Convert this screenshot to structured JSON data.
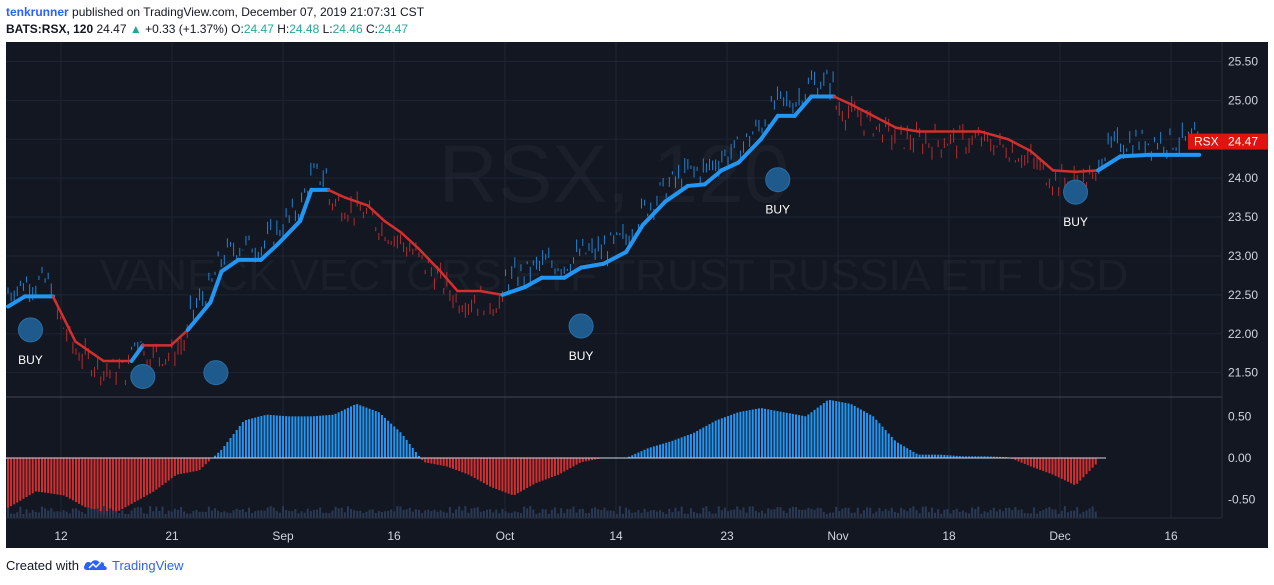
{
  "header": {
    "author": "tenkrunner",
    "published": " published on TradingView.com, December 07, 2019 21:07:31 CST",
    "symbol": "BATS:RSX, 120",
    "last": "24.47",
    "change_arrow": "▲",
    "change": "+0.33 (+1.37%)",
    "o_label": "O:",
    "o_val": "24.47",
    "h_label": "H:",
    "h_val": "24.48",
    "l_label": "L:",
    "l_val": "24.46",
    "c_label": "C:",
    "c_val": "24.47"
  },
  "footer": {
    "created": "Created with",
    "brand": "TradingView",
    "logo_icon": "tradingview-cloud-icon"
  },
  "colors": {
    "bg": "#131722",
    "up": "#2196f3",
    "down": "#d32f2f",
    "grid": "#1e2433",
    "axis_text": "#d1d4dc",
    "price_tag": "#e0140f"
  },
  "chart_data": [
    {
      "type": "line",
      "watermark": [
        "RSX, 120",
        "VANECK VECTORS ETF TRUST RUSSIA ETF USD"
      ],
      "y_ticks": [
        "25.50",
        "25.00",
        "24.50",
        "24.00",
        "23.50",
        "23.00",
        "22.50",
        "22.00",
        "21.50"
      ],
      "ylim": [
        21.2,
        25.75
      ],
      "x_ticks": [
        "12",
        "21",
        "Sep",
        "16",
        "Oct",
        "14",
        "23",
        "Nov",
        "18",
        "Dec",
        "16"
      ],
      "price_tag": {
        "label": "RSX",
        "value": "24.47"
      },
      "trend_line": {
        "x": [
          0,
          3,
          8,
          12,
          17,
          22,
          24,
          29,
          32,
          36,
          38,
          41,
          45,
          48,
          52,
          54,
          57,
          60,
          64,
          67,
          70,
          73,
          77,
          80,
          84,
          88,
          92,
          95,
          99,
          102,
          106,
          110,
          113,
          117,
          121,
          124,
          127,
          130,
          134,
          137,
          140,
          143,
          147,
          150,
          154,
          158,
          162,
          165,
          169,
          173,
          178,
          182,
          186,
          190,
          194,
          198,
          203,
          208,
          212
        ],
        "y": [
          22.35,
          22.48,
          22.48,
          21.9,
          21.65,
          21.65,
          21.85,
          21.85,
          22.05,
          22.4,
          22.8,
          22.95,
          22.95,
          23.15,
          23.45,
          23.85,
          23.85,
          23.75,
          23.65,
          23.45,
          23.3,
          23.1,
          22.8,
          22.55,
          22.55,
          22.5,
          22.6,
          22.72,
          22.72,
          22.85,
          22.9,
          23.05,
          23.4,
          23.7,
          23.9,
          23.92,
          24.1,
          24.2,
          24.5,
          24.8,
          24.8,
          25.05,
          25.05,
          24.95,
          24.8,
          24.65,
          24.6,
          24.6,
          24.6,
          24.6,
          24.5,
          24.35,
          24.1,
          24.08,
          24.1,
          24.28,
          24.3,
          24.3,
          24.3
        ],
        "trend": [
          "up",
          "up",
          "down",
          "down",
          "down",
          "up",
          "down",
          "down",
          "up",
          "up",
          "up",
          "up",
          "up",
          "up",
          "up",
          "up",
          "down",
          "down",
          "down",
          "down",
          "down",
          "down",
          "down",
          "down",
          "down",
          "up",
          "up",
          "up",
          "up",
          "up",
          "up",
          "up",
          "up",
          "up",
          "up",
          "up",
          "up",
          "up",
          "up",
          "up",
          "up",
          "up",
          "down",
          "down",
          "down",
          "down",
          "down",
          "down",
          "down",
          "down",
          "down",
          "down",
          "down",
          "down",
          "up",
          "up",
          "up",
          "up",
          "up"
        ]
      },
      "signals": [
        {
          "x": 4,
          "y": 22.05,
          "label": "BUY"
        },
        {
          "x": 24,
          "y": 21.45,
          "label": ""
        },
        {
          "x": 37,
          "y": 21.5,
          "label": ""
        },
        {
          "x": 102,
          "y": 22.1,
          "label": "BUY"
        },
        {
          "x": 137,
          "y": 23.98,
          "label": "BUY"
        },
        {
          "x": 190,
          "y": 23.82,
          "label": "BUY"
        }
      ],
      "x_range": [
        0,
        215
      ]
    },
    {
      "type": "bar",
      "name": "histogram",
      "y_ticks": [
        "0.50",
        "0.00",
        "-0.50"
      ],
      "ylim": [
        -0.72,
        0.72
      ],
      "values_x": [
        0,
        5,
        10,
        14,
        18,
        22,
        26,
        30,
        34,
        38,
        42,
        46,
        50,
        54,
        58,
        62,
        66,
        70,
        74,
        78,
        82,
        86,
        90,
        94,
        98,
        102,
        106,
        110,
        114,
        118,
        122,
        126,
        130,
        134,
        138,
        142,
        146,
        150,
        154,
        158,
        162,
        166,
        170,
        174,
        178,
        182,
        186,
        190,
        194
      ],
      "values": [
        -0.6,
        -0.4,
        -0.45,
        -0.6,
        -0.7,
        -0.55,
        -0.4,
        -0.2,
        -0.15,
        0.1,
        0.45,
        0.52,
        0.5,
        0.5,
        0.52,
        0.65,
        0.55,
        0.3,
        -0.05,
        -0.1,
        -0.2,
        -0.35,
        -0.45,
        -0.3,
        -0.2,
        -0.05,
        0.0,
        0.0,
        0.12,
        0.2,
        0.3,
        0.45,
        0.55,
        0.6,
        0.55,
        0.5,
        0.7,
        0.65,
        0.5,
        0.2,
        0.04,
        0.04,
        0.02,
        0.02,
        0.01,
        -0.1,
        -0.2,
        -0.33,
        -0.05
      ]
    }
  ]
}
